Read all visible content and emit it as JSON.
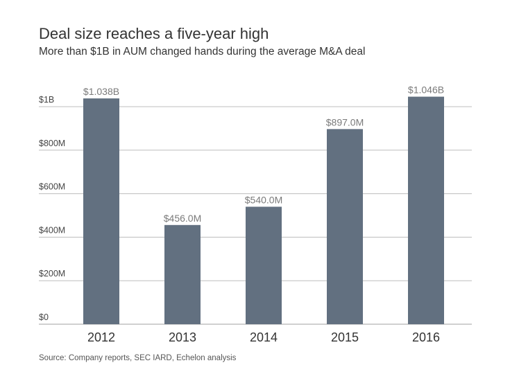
{
  "header": {
    "title": "Deal size reaches a five-year high",
    "subtitle": "More than $1B in AUM changed hands during the average M&A deal"
  },
  "footer": {
    "source": "Source: Company reports, SEC IARD, Echelon analysis"
  },
  "colors": {
    "bar": "#627080",
    "grid": "#bdbdbd",
    "axis": "#a0a0a0"
  },
  "chart_data": {
    "type": "bar",
    "title": "Deal size reaches a five-year high",
    "subtitle": "More than $1B in AUM changed hands during the average M&A deal",
    "xlabel": "",
    "ylabel": "",
    "categories": [
      "2012",
      "2013",
      "2014",
      "2015",
      "2016"
    ],
    "values": [
      1038,
      456,
      540,
      897,
      1046
    ],
    "value_units": "millions USD",
    "data_labels": [
      "$1.038B",
      "$456.0M",
      "$540.0M",
      "$897.0M",
      "$1.046B"
    ],
    "ylim": [
      0,
      1000
    ],
    "yticks": [
      0,
      200,
      400,
      600,
      800,
      1000
    ],
    "ytick_labels": [
      "$0",
      "$200M",
      "$400M",
      "$600M",
      "$800M",
      "$1B"
    ],
    "grid": true,
    "legend": "none"
  }
}
